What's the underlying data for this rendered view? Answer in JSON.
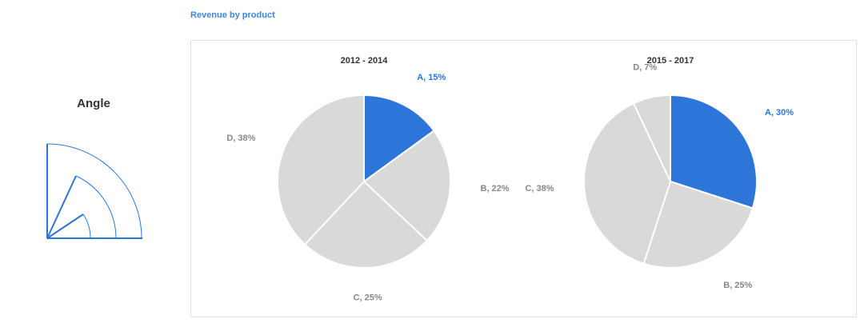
{
  "sidebar": {
    "title": "Angle"
  },
  "header": {
    "title": "Revenue by product"
  },
  "chart_data": [
    {
      "type": "pie",
      "title": "2012 - 2014",
      "categories": [
        "A",
        "B",
        "C",
        "D"
      ],
      "values": [
        15,
        22,
        25,
        38
      ],
      "value_labels": [
        "A, 15%",
        "B, 22%",
        "C, 25%",
        "D, 38%"
      ],
      "colors": [
        "#2e75d9",
        "#d9d9d9",
        "#d9d9d9",
        "#d9d9d9"
      ]
    },
    {
      "type": "pie",
      "title": "2015 - 2017",
      "categories": [
        "A",
        "B",
        "C",
        "D"
      ],
      "values": [
        30,
        25,
        38,
        7
      ],
      "value_labels": [
        "A, 30%",
        "B, 25%",
        "C, 38%",
        "D, 7%"
      ],
      "colors": [
        "#2e75d9",
        "#d9d9d9",
        "#d9d9d9",
        "#d9d9d9"
      ]
    }
  ]
}
